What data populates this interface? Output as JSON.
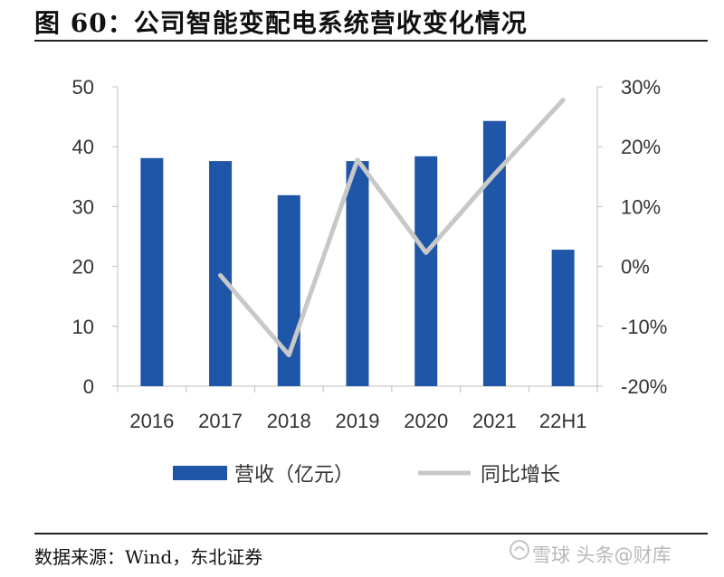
{
  "title": "图 60：公司智能变配电系统营收变化情况",
  "source": "数据来源：Wind，东北证券",
  "watermark": "雪球 头条@财库",
  "chart_data": {
    "type": "bar",
    "categories": [
      "2016",
      "2017",
      "2018",
      "2019",
      "2020",
      "2021",
      "22H1"
    ],
    "series": [
      {
        "name": "营收（亿元）",
        "type": "bar",
        "axis": "left",
        "color": "#1f56a8",
        "values": [
          38.1,
          37.6,
          31.9,
          37.6,
          38.4,
          44.3,
          22.8
        ]
      },
      {
        "name": "同比增长",
        "type": "line",
        "axis": "right",
        "color": "#c8c8c8",
        "values": [
          null,
          -1.5,
          -14.8,
          17.8,
          2.3,
          15.4,
          27.8
        ]
      }
    ],
    "ylim": [
      0,
      50
    ],
    "yticks": [
      0,
      10,
      20,
      30,
      40,
      50
    ],
    "ylim_right": [
      -20,
      30
    ],
    "yticks_right": [
      "-20%",
      "-10%",
      "0%",
      "10%",
      "20%",
      "30%"
    ],
    "grid": false,
    "legend_position": "bottom"
  }
}
